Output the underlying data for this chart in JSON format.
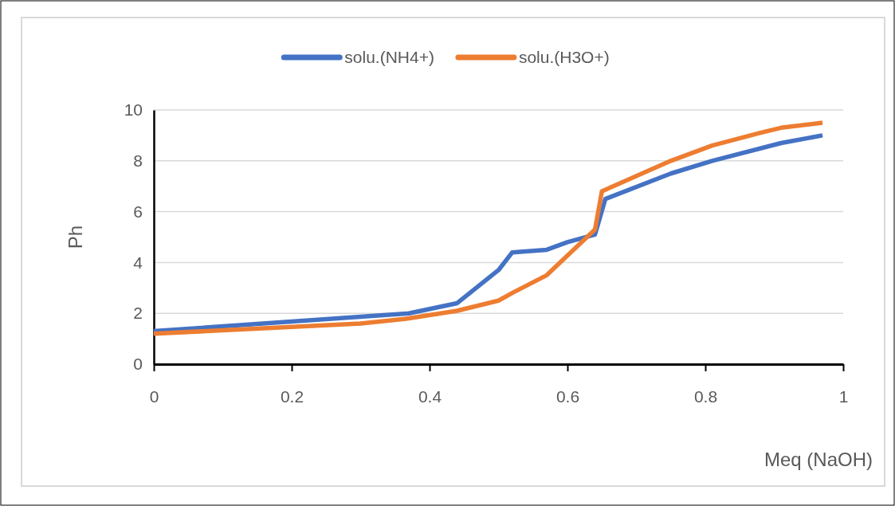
{
  "chart_data": {
    "type": "line",
    "xlabel": "Meq (NaOH)",
    "ylabel": "Ph",
    "xlim": [
      0,
      1
    ],
    "xticks": [
      0,
      0.2,
      0.4,
      0.6,
      0.8,
      1
    ],
    "ylim": [
      0,
      10
    ],
    "yticks": [
      0,
      2,
      4,
      6,
      8,
      10
    ],
    "grid": "y",
    "legend": "top",
    "marker": "none",
    "line_style": "solid",
    "series": [
      {
        "name": "solu.(NH4+)",
        "color": "#4472c4",
        "x": [
          0,
          0.37,
          0.44,
          0.5,
          0.52,
          0.57,
          0.6,
          0.64,
          0.655,
          0.75,
          0.81,
          0.91,
          0.97
        ],
        "values": [
          1.3,
          2.0,
          2.4,
          3.7,
          4.4,
          4.5,
          4.8,
          5.1,
          6.5,
          7.5,
          8.0,
          8.7,
          9.0
        ]
      },
      {
        "name": "solu.(H3O+)",
        "color": "#ed7d31",
        "x": [
          0,
          0.3,
          0.37,
          0.44,
          0.5,
          0.52,
          0.57,
          0.64,
          0.65,
          0.75,
          0.81,
          0.88,
          0.91,
          0.97
        ],
        "values": [
          1.2,
          1.6,
          1.8,
          2.1,
          2.5,
          2.8,
          3.5,
          5.3,
          6.8,
          8.0,
          8.6,
          9.1,
          9.3,
          9.5
        ]
      }
    ]
  }
}
